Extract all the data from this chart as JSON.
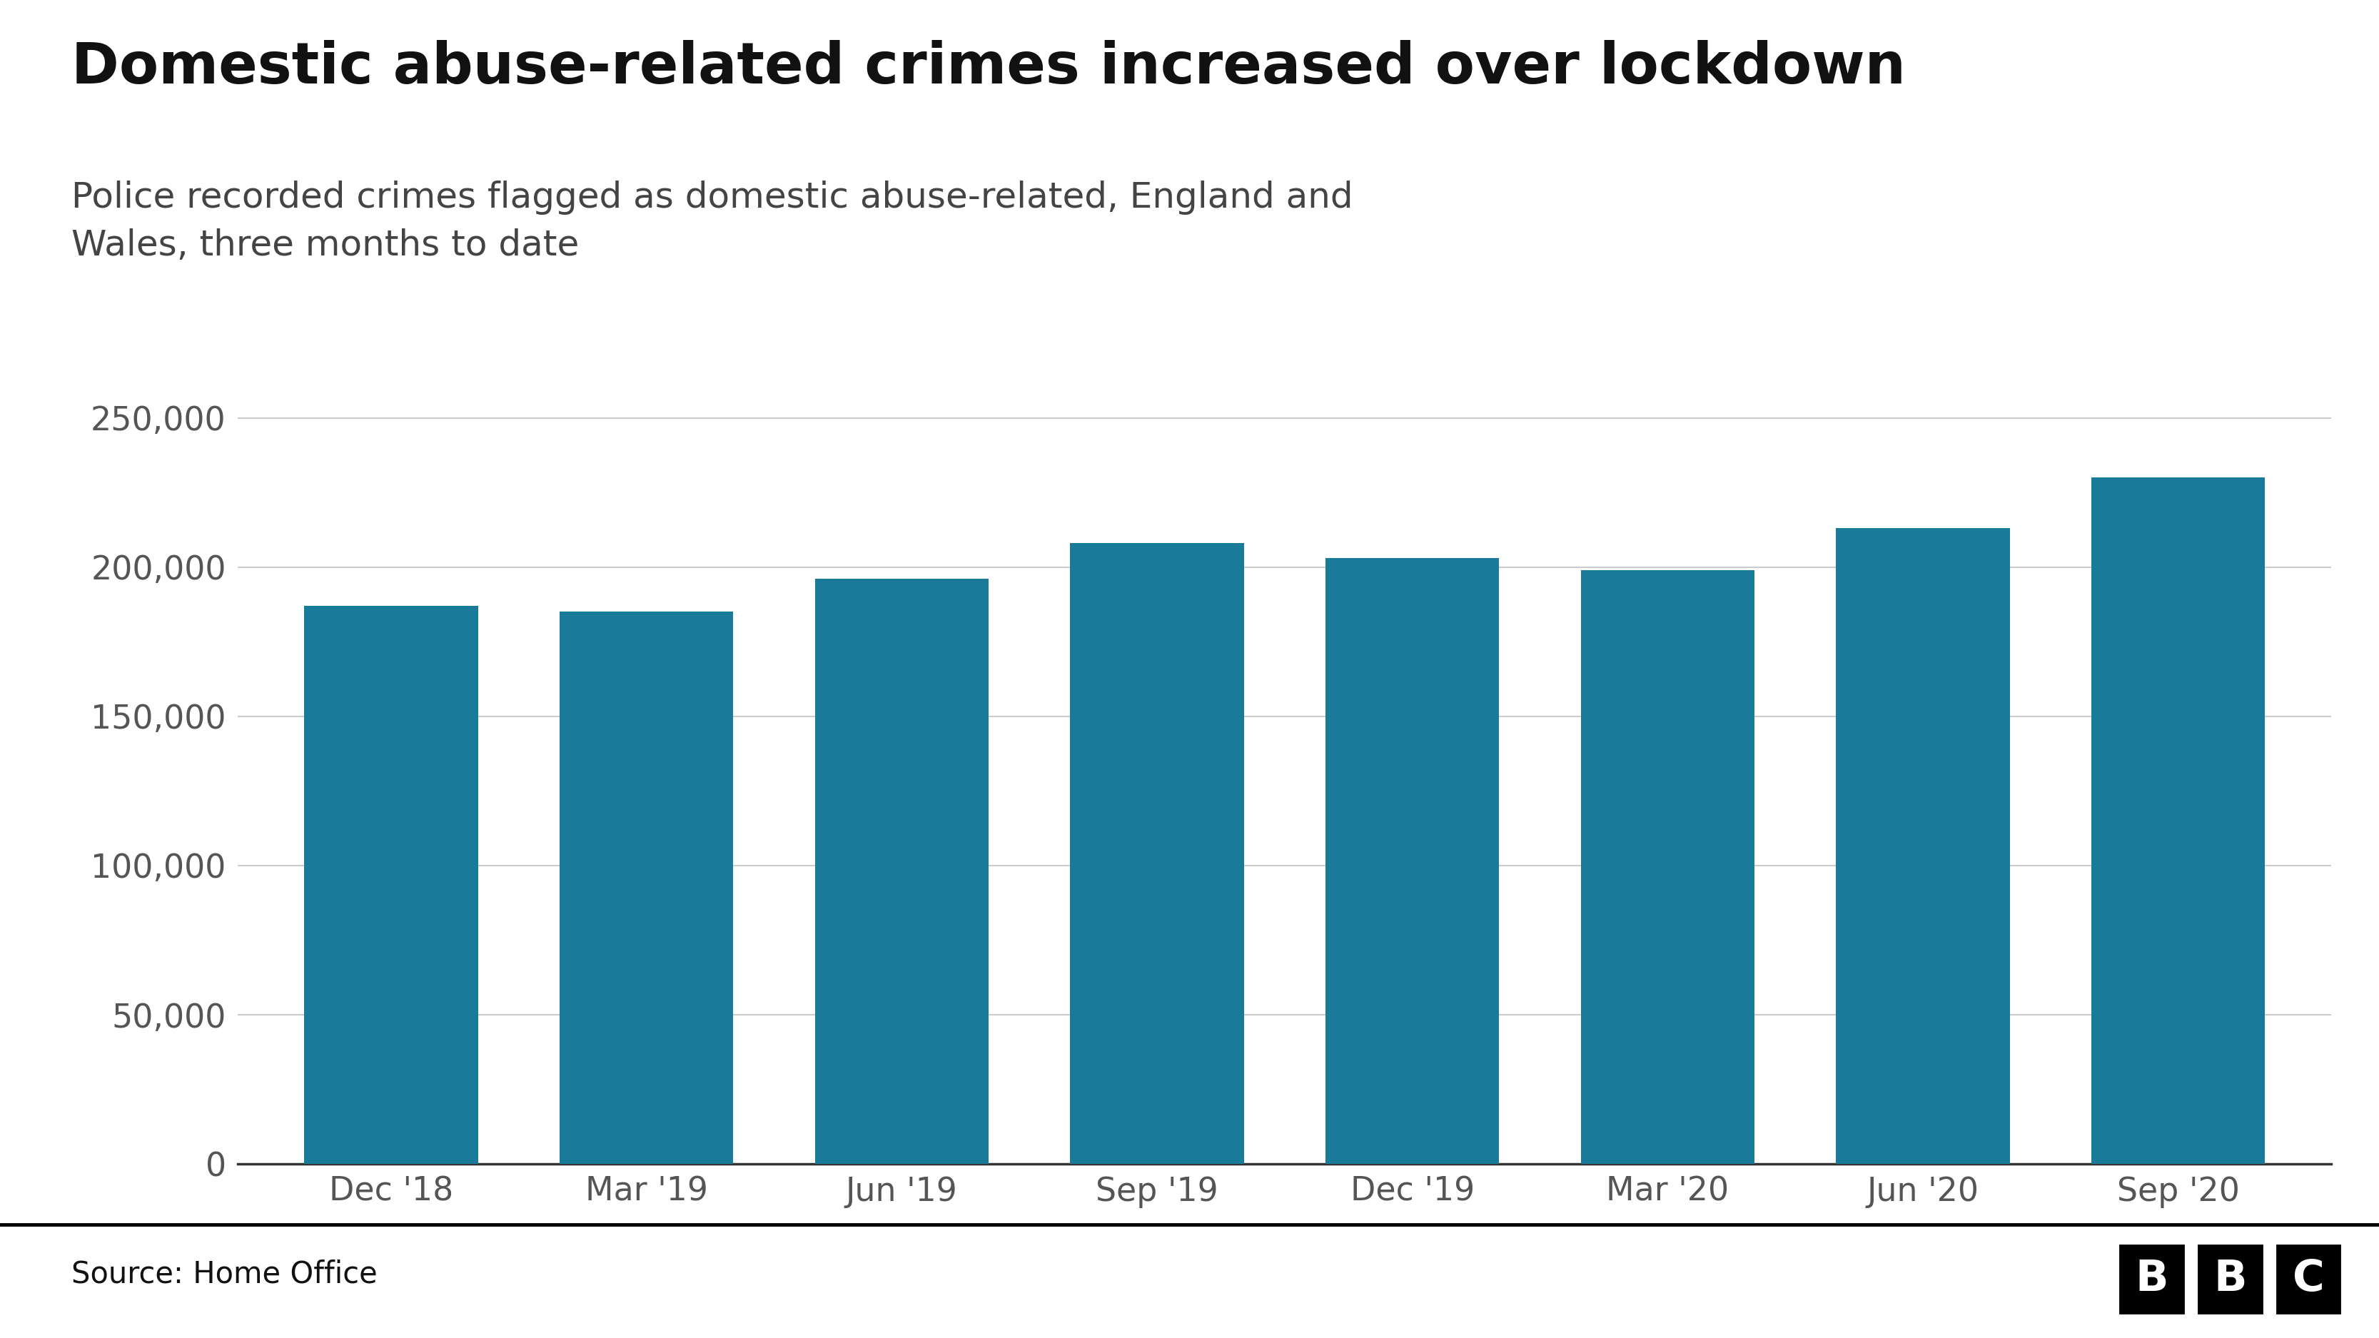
{
  "title": "Domestic abuse-related crimes increased over lockdown",
  "subtitle": "Police recorded crimes flagged as domestic abuse-related, England and\nWales, three months to date",
  "categories": [
    "Dec '18",
    "Mar '19",
    "Jun '19",
    "Sep '19",
    "Dec '19",
    "Mar '20",
    "Jun '20",
    "Sep '20"
  ],
  "values": [
    187000,
    185000,
    196000,
    208000,
    203000,
    199000,
    213000,
    230000
  ],
  "bar_color": "#1a7a99",
  "background_color": "#ffffff",
  "text_color": "#111111",
  "subtitle_color": "#444444",
  "grid_color": "#cccccc",
  "tick_color": "#555555",
  "source_text": "Source: Home Office",
  "ylim": [
    0,
    260000
  ],
  "yticks": [
    0,
    50000,
    100000,
    150000,
    200000,
    250000
  ],
  "title_fontsize": 58,
  "subtitle_fontsize": 36,
  "tick_fontsize": 33,
  "source_fontsize": 30,
  "footer_line_color": "#000000",
  "bottom_spine_color": "#333333"
}
